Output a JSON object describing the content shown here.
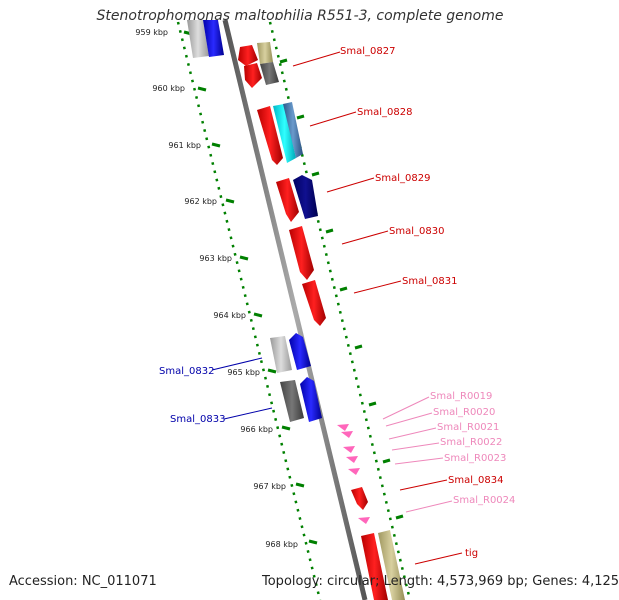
{
  "title": "Stenotrophomonas maltophilia R551-3, complete genome",
  "footer": {
    "accession": "Accession: NC_011071",
    "summary": "Topology: circular; Length: 4,573,969 bp; Genes: 4,125"
  },
  "ticks": [
    "959 kbp",
    "960 kbp",
    "961 kbp",
    "962 kbp",
    "963 kbp",
    "964 kbp",
    "965 kbp",
    "966 kbp",
    "967 kbp",
    "968 kbp"
  ],
  "gene_labels": [
    {
      "text": "Smal_0827",
      "color": "#cc0000"
    },
    {
      "text": "Smal_0828",
      "color": "#cc0000"
    },
    {
      "text": "Smal_0829",
      "color": "#cc0000"
    },
    {
      "text": "Smal_0830",
      "color": "#cc0000"
    },
    {
      "text": "Smal_0831",
      "color": "#cc0000"
    },
    {
      "text": "Smal_0832",
      "color": "#0000aa"
    },
    {
      "text": "Smal_0833",
      "color": "#0000aa"
    },
    {
      "text": "Smal_R0019",
      "color": "#ee88bb"
    },
    {
      "text": "Smal_R0020",
      "color": "#ee88bb"
    },
    {
      "text": "Smal_R0021",
      "color": "#ee88bb"
    },
    {
      "text": "Smal_R0022",
      "color": "#ee88bb"
    },
    {
      "text": "Smal_R0023",
      "color": "#ee88bb"
    },
    {
      "text": "Smal_0834",
      "color": "#cc0000"
    },
    {
      "text": "Smal_R0024",
      "color": "#ee88bb"
    },
    {
      "text": "tig",
      "color": "#cc0000"
    }
  ],
  "colors": {
    "forward_cds": "#ff0000",
    "reverse_cds": "#0000ff",
    "rna": "#ff66bb",
    "backbone": "#888888",
    "tick": "#008000"
  }
}
